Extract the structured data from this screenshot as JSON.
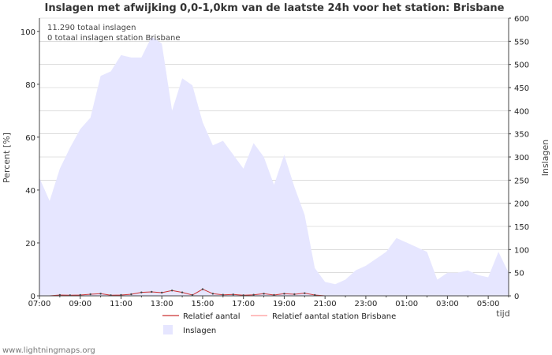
{
  "footer": "www.lightningmaps.org",
  "colors": {
    "area_fill": "#e6e6ff",
    "relatief_line": "#cc3333",
    "relatief_station_line": "#ff9999",
    "grid": "#c8c8c8",
    "axis": "#444444"
  },
  "chart_data": {
    "type": "area",
    "title": "Inslagen met afwijking 0,0-1,0km van de laatste 24h voor het station: Brisbane",
    "info_lines": [
      "11.290 totaal inslagen",
      "0 totaal inslagen station Brisbane"
    ],
    "xlabel": "tijd",
    "ylabel_left": "Percent   [%]",
    "ylabel_right": "Inslagen",
    "ylim_left": [
      0,
      105
    ],
    "ylim_right": [
      0,
      600
    ],
    "yticks_left": [
      "0",
      "20",
      "40",
      "60",
      "80",
      "100"
    ],
    "yticks_right": [
      "0",
      "50",
      "100",
      "150",
      "200",
      "250",
      "300",
      "350",
      "400",
      "450",
      "500",
      "550",
      "600"
    ],
    "xticks": [
      "07:00",
      "09:00",
      "11:00",
      "13:00",
      "15:00",
      "17:00",
      "19:00",
      "21:00",
      "23:00",
      "01:00",
      "03:00",
      "05:00"
    ],
    "x_hours": [
      0,
      0.5,
      1,
      1.5,
      2,
      2.5,
      3,
      3.5,
      4,
      4.5,
      5,
      5.5,
      6,
      6.5,
      7,
      7.5,
      8,
      8.5,
      9,
      9.5,
      10,
      10.5,
      11,
      11.5,
      12,
      12.5,
      13,
      13.5,
      14,
      14.5,
      15,
      15.5,
      16,
      16.5,
      17,
      17.5,
      18,
      18.5,
      19,
      19.5,
      20,
      20.5,
      21,
      21.5,
      22,
      22.5,
      23
    ],
    "series": [
      {
        "name": "Inslagen",
        "axis": "right",
        "values": [
          255,
          205,
          275,
          320,
          360,
          385,
          475,
          485,
          520,
          515,
          515,
          560,
          545,
          400,
          470,
          455,
          375,
          325,
          335,
          305,
          275,
          330,
          300,
          240,
          305,
          235,
          175,
          60,
          30,
          25,
          35,
          55,
          65,
          80,
          95,
          125,
          115,
          105,
          95,
          35,
          50,
          50,
          55,
          45,
          40,
          95,
          50
        ]
      },
      {
        "name": "Relatief aantal",
        "axis": "left",
        "values": [
          0,
          0,
          0.3,
          0.2,
          0.3,
          0.6,
          0.8,
          0.2,
          0.3,
          0.6,
          1.3,
          1.5,
          1.2,
          2.0,
          1.3,
          0.3,
          2.5,
          0.8,
          0.4,
          0.5,
          0.2,
          0.4,
          0.8,
          0.3,
          0.8,
          0.6,
          1.0,
          0.3,
          0,
          0,
          0,
          0,
          0,
          0,
          0,
          0,
          0,
          0,
          0,
          0,
          0,
          0,
          0,
          0,
          0,
          0,
          0
        ]
      },
      {
        "name": "Relatief aantal station Brisbane",
        "axis": "left",
        "values": [
          0,
          0,
          0,
          0,
          0,
          0,
          0,
          0,
          0,
          0,
          0,
          0,
          0,
          0,
          0,
          0,
          0,
          0,
          0,
          0,
          0,
          0,
          0,
          0,
          0,
          0,
          0,
          0,
          0,
          0,
          0,
          0,
          0,
          0,
          0,
          0,
          0,
          0,
          0,
          0,
          0,
          0,
          0,
          0,
          0,
          0,
          0
        ]
      }
    ],
    "legend": [
      "Relatief aantal",
      "Relatief aantal station Brisbane",
      "Inslagen"
    ]
  }
}
